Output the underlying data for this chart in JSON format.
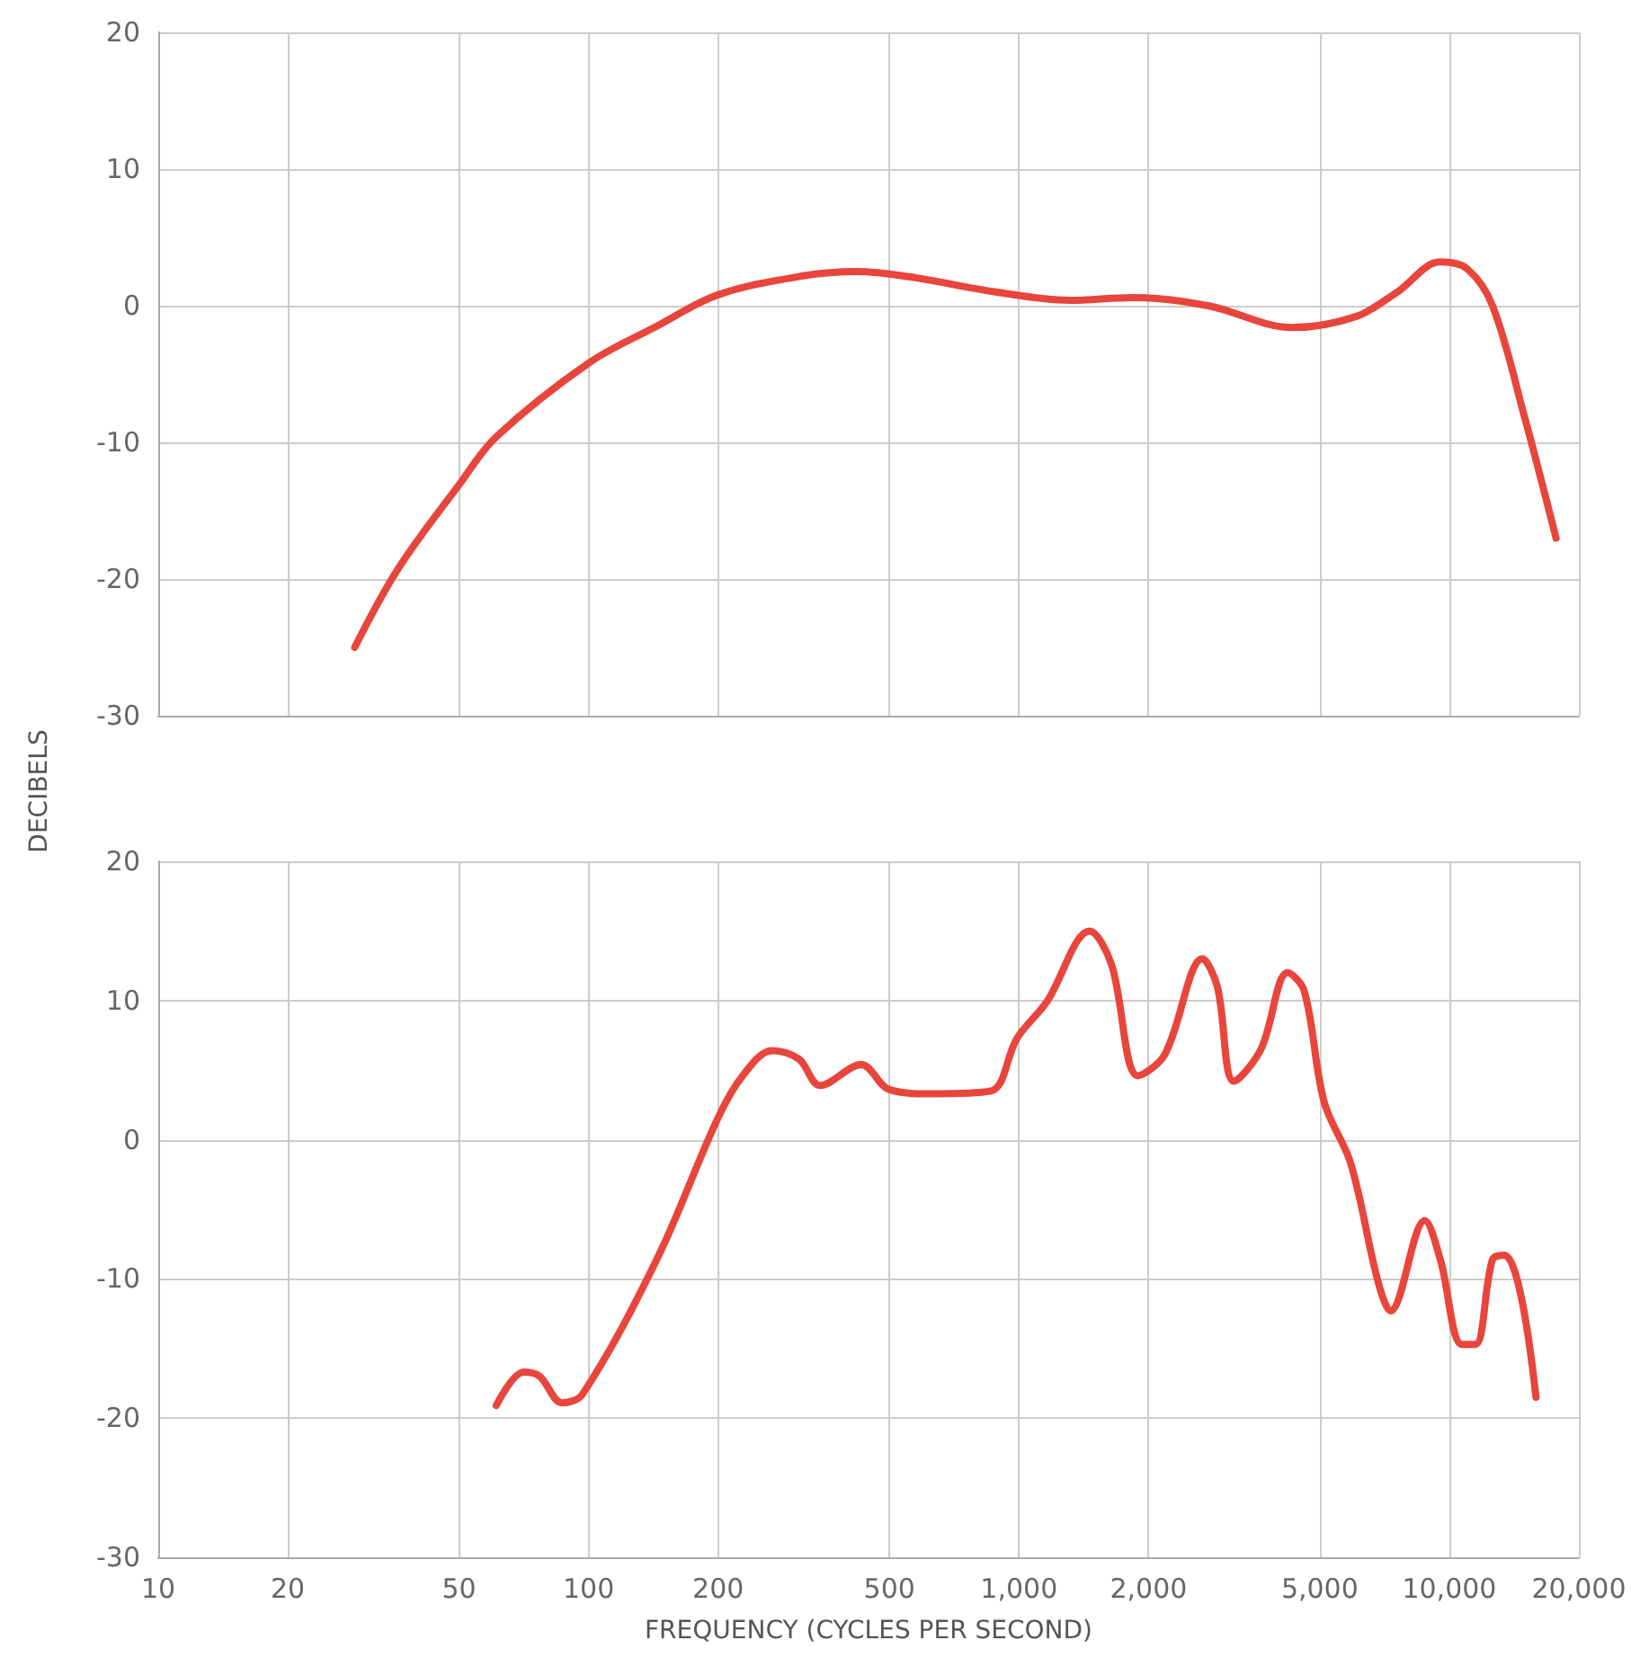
{
  "chart_data": [
    {
      "type": "line",
      "ylabel": "DECIBELS",
      "log": "x",
      "grid": true,
      "marker": "none",
      "line_style": "solid",
      "tick_labels": "y",
      "xlim": [
        10,
        20000
      ],
      "xticks": [
        10,
        20,
        50,
        100,
        200,
        500,
        1000,
        2000,
        5000,
        10000,
        20000
      ],
      "ylim": [
        -30,
        20
      ],
      "yticks": [
        -30,
        -20,
        -10,
        0,
        10,
        20
      ],
      "series": [
        {
          "color": "#e8453c",
          "x": [
            28.6,
            36,
            50,
            61,
            100,
            144,
            200,
            318,
            420,
            560,
            883,
            1310,
            1840,
            2750,
            4330,
            6060,
            7570,
            9530,
            11000,
            12600,
            15000,
            17700
          ],
          "values": [
            -25,
            -19.3,
            -13.1,
            -9.6,
            -4.2,
            -1.5,
            0.8,
            2.2,
            2.5,
            2.1,
            1,
            0.4,
            0.6,
            0,
            -1.6,
            -0.8,
            1,
            3.2,
            2.7,
            0,
            -8.3,
            -17
          ]
        }
      ]
    },
    {
      "type": "line",
      "xlabel": "FREQUENCY (CYCLES PER SECOND)",
      "log": "x",
      "grid": true,
      "marker": "none",
      "line_style": "solid",
      "xlim": [
        10,
        20000
      ],
      "xticks": [
        10,
        20,
        50,
        100,
        200,
        500,
        {
          "value": 1000,
          "label": "1,000"
        },
        {
          "value": 2000,
          "label": "2,000"
        },
        {
          "value": 5000,
          "label": "5,000"
        },
        {
          "value": 10000,
          "label": "10,000"
        },
        {
          "value": 20000,
          "label": "20,000"
        }
      ],
      "ylim": [
        -30,
        20
      ],
      "yticks": [
        -30,
        -20,
        -10,
        0,
        10,
        20
      ],
      "series": [
        {
          "color": "#e8453c",
          "x": [
            61,
            70.7,
            77,
            86.7,
            96.7,
            144,
            200,
            228,
            267,
            308,
            345,
            430,
            500,
            630,
            860,
            990,
            1160,
            1460,
            1640,
            1890,
            2180,
            2670,
            2890,
            3160,
            3650,
            4210,
            4600,
            5120,
            5900,
            6830,
            7300,
            8770,
            9530,
            10700,
            11500,
            12600,
            13400,
            14600,
            15900
          ],
          "values": [
            -19.1,
            -16.7,
            -17,
            -18.9,
            -18.3,
            -8.6,
            1.6,
            4.6,
            6.4,
            5.8,
            3.9,
            5.4,
            3.6,
            3.3,
            3.5,
            7.3,
            9.9,
            15,
            12.6,
            4.6,
            6.1,
            13,
            11,
            4.2,
            6.5,
            12,
            10.7,
            2.7,
            -1.7,
            -10.2,
            -12.3,
            -5.8,
            -8.6,
            -14.7,
            -14.7,
            -8.6,
            -8.3,
            -10.9,
            -18.5
          ]
        }
      ]
    }
  ]
}
